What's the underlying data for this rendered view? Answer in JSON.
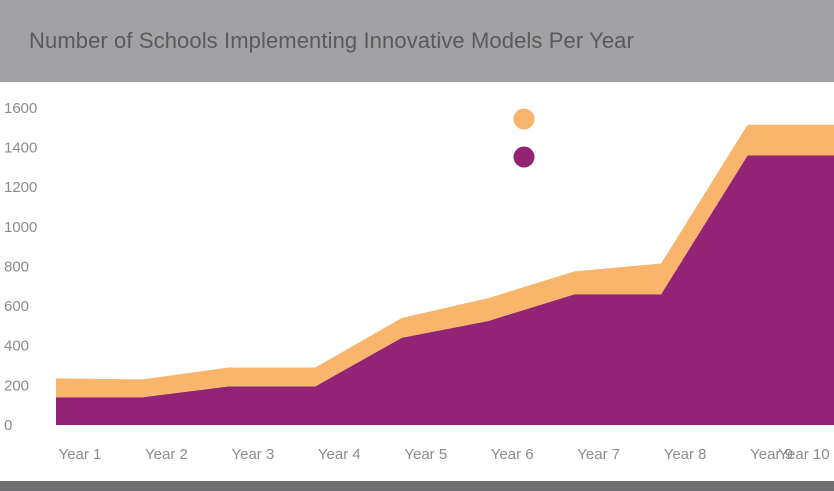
{
  "header": {
    "title": "Number of Schools Implementing Innovative Models Per Year"
  },
  "colors": {
    "header_bg": "#a2a2a4",
    "title_text": "#5a5a5c",
    "tick_text": "#8b8b8d",
    "series_1": "#f8b56b",
    "series_2": "#922375",
    "bottom_bar": "#6f6f71"
  },
  "chart_data": {
    "type": "area",
    "title": "Number of Schools Implementing Innovative Models Per Year",
    "categories": [
      "Year 1",
      "Year 2",
      "Year 3",
      "Year 4",
      "Year 5",
      "Year 6",
      "Year 7",
      "Year 8",
      "Year 9",
      "Year 10"
    ],
    "stacked": true,
    "series": [
      {
        "color": "#922375",
        "values": [
          140,
          140,
          195,
          195,
          440,
          525,
          660,
          660,
          1360,
          1360
        ]
      },
      {
        "color": "#f8b56b",
        "values": [
          95,
          90,
          95,
          95,
          100,
          115,
          115,
          155,
          155,
          155
        ]
      }
    ],
    "y_ticks": [
      0,
      200,
      400,
      600,
      800,
      1000,
      1200,
      1400,
      1600
    ],
    "ylim": [
      0,
      1630
    ],
    "grid": false,
    "legend": {
      "position": "top-center",
      "labels_visible": false
    }
  }
}
